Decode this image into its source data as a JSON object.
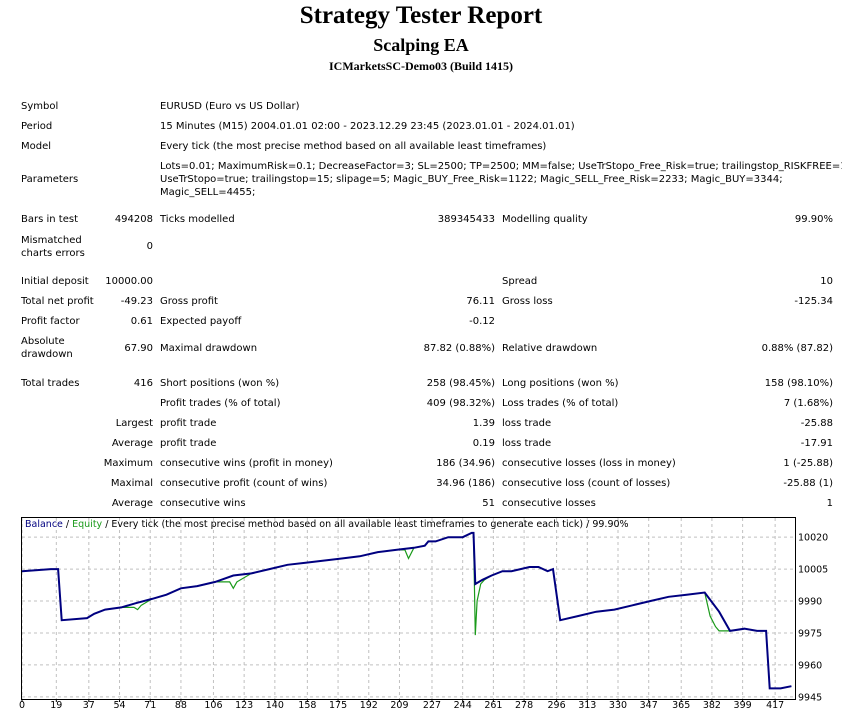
{
  "report": {
    "title": "Strategy Tester Report",
    "ea_name": "Scalping EA",
    "server": "ICMarketsSC-Demo03 (Build 1415)"
  },
  "settings": {
    "symbol_label": "Symbol",
    "symbol_value": "EURUSD (Euro vs US Dollar)",
    "period_label": "Period",
    "period_value": "15 Minutes (M15) 2004.01.01 02:00 - 2023.12.29 23:45 (2023.01.01 - 2024.01.01)",
    "model_label": "Model",
    "model_value": "Every tick (the most precise method based on all available least timeframes)",
    "parameters_label": "Parameters",
    "parameters_lines": [
      "Lots=0.01; MaximumRisk=0.1; DecreaseFactor=3; SL=2500; TP=2500; MM=false; UseTrStopo_Free_Risk=true; trailingstop_RISKFREE=15;",
      "UseTrStopo=true; trailingstop=15; slipage=5; Magic_BUY_Free_Risk=1122; Magic_SELL_Free_Risk=2233; Magic_BUY=3344;",
      "Magic_SELL=4455;"
    ]
  },
  "quality": {
    "bars_label": "Bars in test",
    "bars_value": "494208",
    "ticks_label": "Ticks modelled",
    "ticks_value": "389345433",
    "quality_label": "Modelling quality",
    "quality_value": "99.90%",
    "mismatch_label_1": "Mismatched",
    "mismatch_label_2": "charts errors",
    "mismatch_value": "0"
  },
  "results": {
    "initial_deposit_label": "Initial deposit",
    "initial_deposit_value": "10000.00",
    "spread_label": "Spread",
    "spread_value": "10",
    "total_net_profit_label": "Total net profit",
    "total_net_profit_value": "-49.23",
    "gross_profit_label": "Gross profit",
    "gross_profit_value": "76.11",
    "gross_loss_label": "Gross loss",
    "gross_loss_value": "-125.34",
    "profit_factor_label": "Profit factor",
    "profit_factor_value": "0.61",
    "expected_payoff_label": "Expected payoff",
    "expected_payoff_value": "-0.12",
    "absolute_drawdown_label_1": "Absolute",
    "absolute_drawdown_label_2": "drawdown",
    "absolute_drawdown_value": "67.90",
    "maximal_drawdown_label": "Maximal drawdown",
    "maximal_drawdown_value": "87.82 (0.88%)",
    "relative_drawdown_label": "Relative drawdown",
    "relative_drawdown_value": "0.88% (87.82)"
  },
  "trades": {
    "total_trades_label": "Total trades",
    "total_trades_value": "416",
    "short_label": "Short positions (won %)",
    "short_value": "258 (98.45%)",
    "long_label": "Long positions (won %)",
    "long_value": "158 (98.10%)",
    "profit_trades_label": "Profit trades (% of total)",
    "profit_trades_value": "409 (98.32%)",
    "loss_trades_label": "Loss trades (% of total)",
    "loss_trades_value": "7 (1.68%)",
    "largest_label": "Largest",
    "largest_profit_label": "profit trade",
    "largest_profit_value": "1.39",
    "largest_loss_label": "loss trade",
    "largest_loss_value": "-25.88",
    "average_label": "Average",
    "average_profit_label": "profit trade",
    "average_profit_value": "0.19",
    "average_loss_label": "loss trade",
    "average_loss_value": "-17.91",
    "maximum_label": "Maximum",
    "max_cons_wins_label": "consecutive wins (profit in money)",
    "max_cons_wins_value": "186 (34.96)",
    "max_cons_losses_label": "consecutive losses (loss in money)",
    "max_cons_losses_value": "1 (-25.88)",
    "maximal_label": "Maximal",
    "maximal_cons_profit_label": "consecutive profit (count of wins)",
    "maximal_cons_profit_value": "34.96 (186)",
    "maximal_cons_loss_label": "consecutive loss (count of losses)",
    "maximal_cons_loss_value": "-25.88 (1)",
    "average2_label": "Average",
    "avg_cons_wins_label": "consecutive wins",
    "avg_cons_wins_value": "51",
    "avg_cons_losses_label": "consecutive losses",
    "avg_cons_losses_value": "1"
  },
  "chart_legend": {
    "balance": "Balance",
    "sep1": " / ",
    "equity": "Equity",
    "rest": " / Every tick (the most precise method based on all available least timeframes to generate each tick) / 99.90%"
  },
  "colors": {
    "balance": "#000080",
    "equity": "#1a9a1a",
    "grid": "#c0c0c0"
  },
  "chart_data": {
    "type": "line",
    "xlim": [
      0,
      428
    ],
    "ylim": [
      9944,
      10029
    ],
    "x_ticks": [
      0,
      19,
      37,
      54,
      71,
      88,
      106,
      123,
      140,
      158,
      175,
      192,
      209,
      227,
      244,
      261,
      278,
      296,
      313,
      330,
      347,
      365,
      382,
      399,
      417
    ],
    "y_ticks": [
      10020,
      10005,
      9990,
      9975,
      9960,
      9945
    ],
    "series": [
      {
        "name": "Balance",
        "x": [
          0,
          16,
          20,
          22,
          36,
          40,
          46,
          55,
          63,
          72,
          80,
          88,
          97,
          107,
          117,
          127,
          137,
          147,
          157,
          167,
          177,
          187,
          197,
          207,
          217,
          223,
          225,
          229,
          236,
          244,
          249,
          250,
          251,
          255,
          260,
          266,
          271,
          276,
          281,
          286,
          291,
          294,
          298,
          308,
          318,
          328,
          338,
          348,
          358,
          368,
          378,
          386,
          392,
          400,
          407,
          412,
          414,
          420,
          426
        ],
        "y": [
          10004,
          10005,
          10005,
          9981,
          9982,
          9984,
          9986,
          9987,
          9989,
          9991,
          9993,
          9996,
          9997,
          9999,
          10002,
          10003,
          10005,
          10007,
          10008,
          10009,
          10010,
          10011,
          10013,
          10014,
          10015,
          10016,
          10018,
          10018,
          10020,
          10020,
          10022,
          10022,
          9998,
          10000,
          10002,
          10004,
          10004,
          10005,
          10006,
          10006,
          10004,
          10005,
          9981,
          9983,
          9985,
          9986,
          9988,
          9990,
          9992,
          9993,
          9994,
          9985,
          9976,
          9977,
          9976,
          9976,
          9949,
          9949,
          9950
        ]
      },
      {
        "name": "Equity",
        "x": [
          0,
          16,
          20,
          22,
          36,
          40,
          46,
          55,
          62,
          64,
          66,
          72,
          80,
          88,
          97,
          107,
          115,
          117,
          119,
          127,
          137,
          147,
          157,
          167,
          177,
          187,
          197,
          207,
          212,
          214,
          217,
          223,
          225,
          229,
          236,
          244,
          249,
          250,
          251,
          252,
          254,
          256,
          260,
          266,
          271,
          276,
          281,
          286,
          291,
          294,
          298,
          308,
          318,
          328,
          338,
          348,
          358,
          368,
          378,
          381,
          384,
          386,
          392,
          400,
          407,
          412,
          414,
          420,
          426
        ],
        "y": [
          10004,
          10005,
          10005,
          9981,
          9982,
          9984,
          9986,
          9987,
          9987,
          9986,
          9988,
          9991,
          9993,
          9996,
          9997,
          9999,
          9999,
          9996,
          9999,
          10003,
          10005,
          10007,
          10008,
          10009,
          10010,
          10011,
          10013,
          10014,
          10014,
          10010,
          10015,
          10016,
          10018,
          10018,
          10020,
          10020,
          10022,
          10022,
          9974,
          9990,
          9998,
          10000,
          10002,
          10004,
          10004,
          10005,
          10006,
          10006,
          10004,
          10005,
          9981,
          9983,
          9985,
          9986,
          9988,
          9990,
          9992,
          9993,
          9994,
          9983,
          9978,
          9976,
          9976,
          9977,
          9976,
          9976,
          9949,
          9949,
          9950
        ]
      }
    ]
  }
}
